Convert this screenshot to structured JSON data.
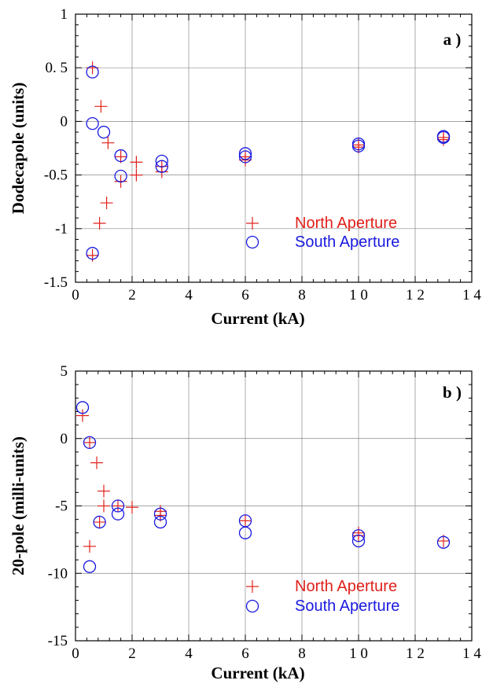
{
  "colors": {
    "north": "#e0201a",
    "south": "#1a1ae0",
    "grid": "#888888",
    "axis": "#000000"
  },
  "chart_data": [
    {
      "type": "scatter",
      "panel_label": "a )",
      "xlabel": "Current  (kA)",
      "ylabel": "Dodecapole  (units)",
      "xlim": [
        0,
        14
      ],
      "ylim": [
        -1.5,
        1
      ],
      "x_ticks": [
        0,
        2,
        4,
        6,
        8,
        10,
        12,
        14
      ],
      "x_tick_labels": [
        "0",
        "2",
        "4",
        "6",
        "8",
        "1 0",
        "1 2",
        "1 4"
      ],
      "y_ticks": [
        -1.5,
        -1,
        -0.5,
        0,
        0.5,
        1
      ],
      "y_tick_labels": [
        "-1.5",
        "-1",
        "-0.5",
        "0",
        "0. 5",
        "1"
      ],
      "grid": true,
      "legend_position": "lower-right",
      "series": [
        {
          "name": "North Aperture",
          "marker": "plus",
          "points": [
            [
              0.6,
              0.5
            ],
            [
              0.6,
              -1.25
            ],
            [
              0.9,
              0.14
            ],
            [
              0.85,
              -0.95
            ],
            [
              1.15,
              -0.2
            ],
            [
              1.1,
              -0.76
            ],
            [
              1.6,
              -0.33
            ],
            [
              1.6,
              -0.56
            ],
            [
              2.15,
              -0.38
            ],
            [
              2.15,
              -0.5
            ],
            [
              3.05,
              -0.42
            ],
            [
              3.05,
              -0.47
            ],
            [
              6.0,
              -0.33
            ],
            [
              6.0,
              -0.36
            ],
            [
              10.0,
              -0.22
            ],
            [
              10.0,
              -0.24
            ],
            [
              13.0,
              -0.15
            ],
            [
              13.0,
              -0.17
            ]
          ]
        },
        {
          "name": "South Aperture",
          "marker": "circle",
          "points": [
            [
              0.6,
              0.46
            ],
            [
              0.6,
              -0.02
            ],
            [
              0.6,
              -1.23
            ],
            [
              1.0,
              -0.1
            ],
            [
              1.6,
              -0.32
            ],
            [
              1.6,
              -0.51
            ],
            [
              3.05,
              -0.37
            ],
            [
              3.05,
              -0.42
            ],
            [
              6.0,
              -0.3
            ],
            [
              6.0,
              -0.33
            ],
            [
              10.0,
              -0.21
            ],
            [
              10.0,
              -0.23
            ],
            [
              13.0,
              -0.14
            ],
            [
              13.0,
              -0.15
            ]
          ]
        }
      ]
    },
    {
      "type": "scatter",
      "panel_label": "b )",
      "xlabel": "Current  (kA)",
      "ylabel": "20-pole     (milli-units)",
      "xlim": [
        0,
        14
      ],
      "ylim": [
        -15,
        5
      ],
      "x_ticks": [
        0,
        2,
        4,
        6,
        8,
        10,
        12,
        14
      ],
      "x_tick_labels": [
        "0",
        "2",
        "4",
        "6",
        "8",
        "1 0",
        "1 2",
        "1 4"
      ],
      "y_ticks": [
        -15,
        -10,
        -5,
        0,
        5
      ],
      "y_tick_labels": [
        "-15",
        "-10",
        "-5",
        "0",
        "5"
      ],
      "grid": true,
      "legend_position": "lower-right",
      "series": [
        {
          "name": "North Aperture",
          "marker": "plus",
          "points": [
            [
              0.25,
              1.7
            ],
            [
              0.5,
              -0.3
            ],
            [
              0.5,
              -8.0
            ],
            [
              0.75,
              -1.8
            ],
            [
              0.85,
              -6.2
            ],
            [
              1.0,
              -3.9
            ],
            [
              1.0,
              -5.0
            ],
            [
              1.5,
              -5.0
            ],
            [
              2.0,
              -5.1
            ],
            [
              3.0,
              -5.4
            ],
            [
              3.0,
              -5.7
            ],
            [
              6.0,
              -6.1
            ],
            [
              10.0,
              -7.0
            ],
            [
              10.0,
              -7.2
            ],
            [
              13.0,
              -7.6
            ]
          ]
        },
        {
          "name": "South Aperture",
          "marker": "circle",
          "points": [
            [
              0.25,
              2.3
            ],
            [
              0.5,
              -0.3
            ],
            [
              0.5,
              -9.5
            ],
            [
              0.85,
              -6.2
            ],
            [
              1.5,
              -5.0
            ],
            [
              1.5,
              -5.6
            ],
            [
              3.0,
              -5.6
            ],
            [
              3.0,
              -6.2
            ],
            [
              6.0,
              -6.1
            ],
            [
              6.0,
              -7.0
            ],
            [
              10.0,
              -7.2
            ],
            [
              10.0,
              -7.6
            ],
            [
              13.0,
              -7.7
            ]
          ]
        }
      ]
    }
  ]
}
